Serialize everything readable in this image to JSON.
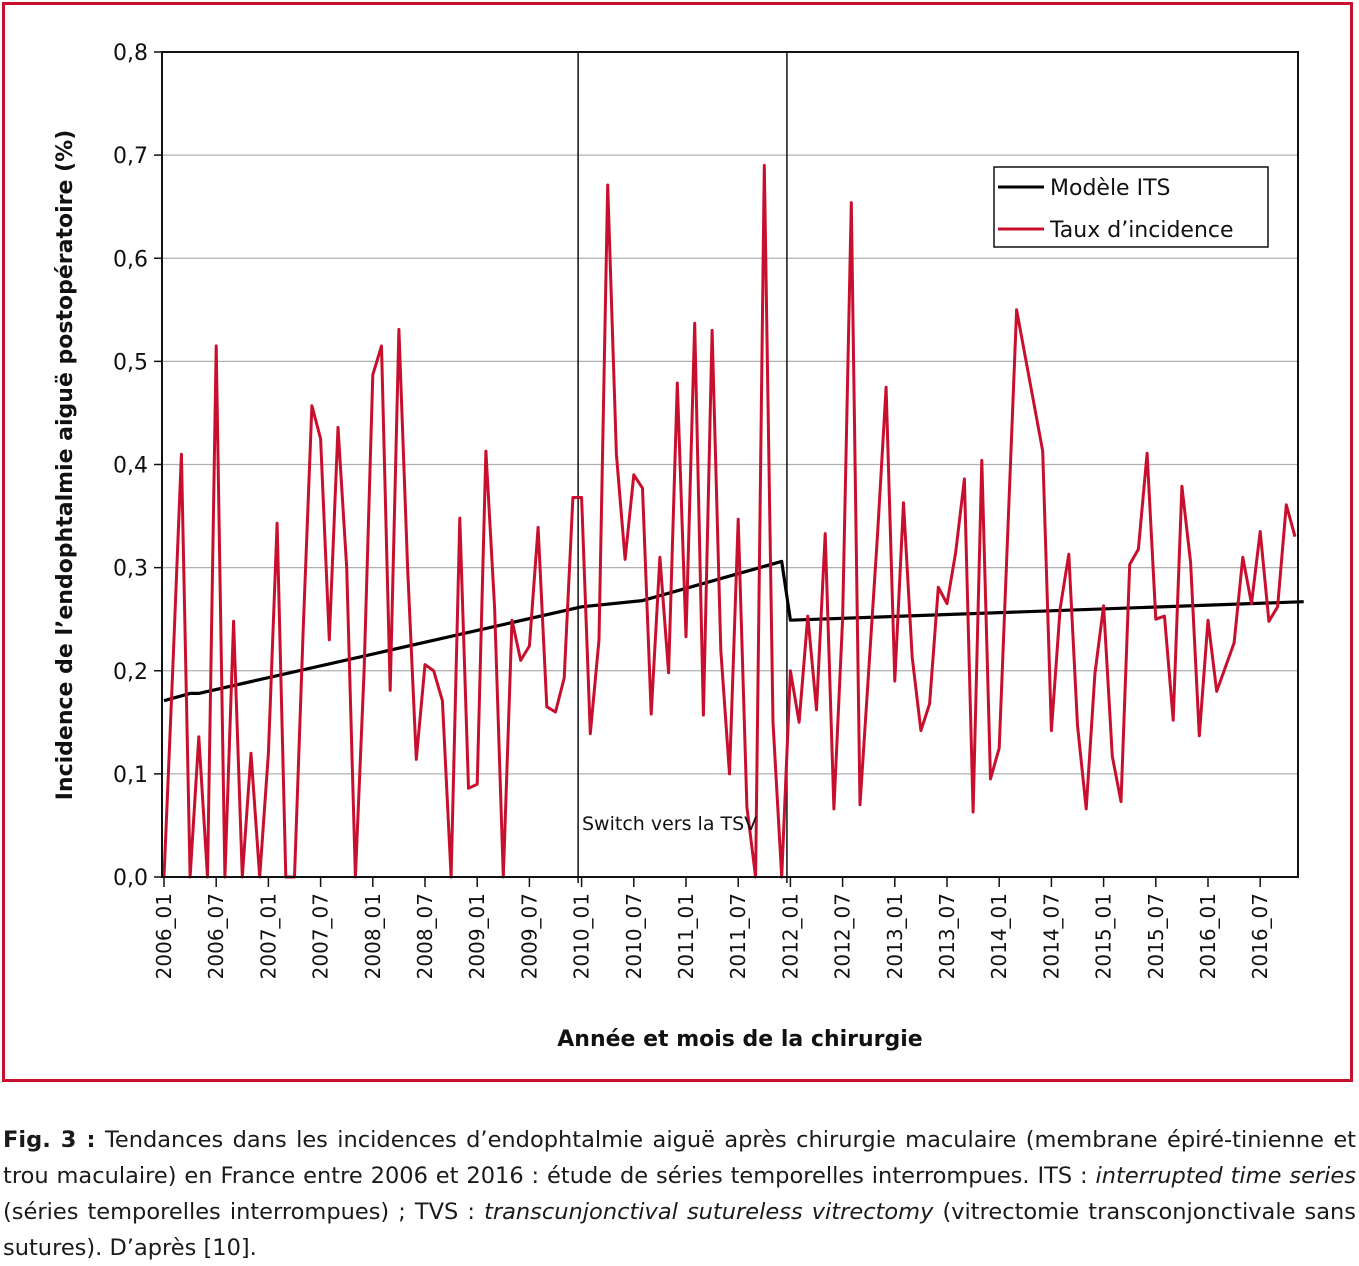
{
  "chart_data": {
    "type": "line",
    "xlabel": "Année et mois de la chirurgie",
    "ylabel": "Incidence de l’endophtalmie aiguë postopératoire (%)",
    "ylim": [
      0,
      0.8
    ],
    "y_ticks": [
      "0,0",
      "0,1",
      "0,2",
      "0,3",
      "0,4",
      "0,5",
      "0,6",
      "0,7",
      "0,8"
    ],
    "x_ticks": [
      "2006_01",
      "2006_07",
      "2007_01",
      "2007_07",
      "2008_01",
      "2008_07",
      "2009_01",
      "2009_07",
      "2010_01",
      "2010_07",
      "2011_01",
      "2011_07",
      "2012_01",
      "2012_07",
      "2013_01",
      "2013_07",
      "2014_01",
      "2014_07",
      "2015_01",
      "2015_07",
      "2016_01",
      "2016_07"
    ],
    "x_range": [
      "2006_01",
      "2016_12"
    ],
    "grid": "horizontal",
    "legend_position": "top-right",
    "annotation": "Switch vers la TSV",
    "switch_lines": [
      "2009_12",
      "2011_12"
    ],
    "series": [
      {
        "name": "Modèle ITS",
        "color": "#000000",
        "points": [
          [
            0,
            0.171
          ],
          [
            3,
            0.178
          ],
          [
            4,
            0.178
          ],
          [
            48,
            0.262
          ],
          [
            55,
            0.268
          ],
          [
            71,
            0.306
          ],
          [
            72,
            0.249
          ],
          [
            131,
            0.267
          ]
        ]
      },
      {
        "name": "Taux d’incidence",
        "color": "#c8102e",
        "points": [
          [
            0,
            0.0
          ],
          [
            1,
            0.2
          ],
          [
            2,
            0.41
          ],
          [
            3,
            0.0
          ],
          [
            4,
            0.136
          ],
          [
            5,
            0.0
          ],
          [
            6,
            0.515
          ],
          [
            7,
            0.0
          ],
          [
            8,
            0.248
          ],
          [
            9,
            0.0
          ],
          [
            10,
            0.12
          ],
          [
            11,
            0.0
          ],
          [
            12,
            0.12
          ],
          [
            13,
            0.343
          ],
          [
            14,
            0.0
          ],
          [
            15,
            0.0
          ],
          [
            16,
            0.24
          ],
          [
            17,
            0.457
          ],
          [
            18,
            0.425
          ],
          [
            19,
            0.23
          ],
          [
            20,
            0.436
          ],
          [
            21,
            0.3
          ],
          [
            22,
            0.0
          ],
          [
            23,
            0.2
          ],
          [
            24,
            0.487
          ],
          [
            25,
            0.515
          ],
          [
            26,
            0.181
          ],
          [
            27,
            0.531
          ],
          [
            28,
            0.3
          ],
          [
            29,
            0.114
          ],
          [
            30,
            0.206
          ],
          [
            31,
            0.2
          ],
          [
            32,
            0.171
          ],
          [
            33,
            0.0
          ],
          [
            34,
            0.348
          ],
          [
            35,
            0.086
          ],
          [
            36,
            0.09
          ],
          [
            37,
            0.413
          ],
          [
            38,
            0.261
          ],
          [
            39,
            0.0
          ],
          [
            40,
            0.249
          ],
          [
            41,
            0.21
          ],
          [
            42,
            0.224
          ],
          [
            43,
            0.339
          ],
          [
            44,
            0.165
          ],
          [
            45,
            0.16
          ],
          [
            46,
            0.193
          ],
          [
            47,
            0.368
          ],
          [
            48,
            0.368
          ],
          [
            49,
            0.139
          ],
          [
            50,
            0.23
          ],
          [
            51,
            0.671
          ],
          [
            52,
            0.41
          ],
          [
            53,
            0.308
          ],
          [
            54,
            0.39
          ],
          [
            55,
            0.377
          ],
          [
            56,
            0.158
          ],
          [
            57,
            0.31
          ],
          [
            58,
            0.198
          ],
          [
            59,
            0.479
          ],
          [
            60,
            0.233
          ],
          [
            61,
            0.537
          ],
          [
            62,
            0.157
          ],
          [
            63,
            0.53
          ],
          [
            64,
            0.22
          ],
          [
            65,
            0.1
          ],
          [
            66,
            0.347
          ],
          [
            67,
            0.068
          ],
          [
            68,
            0.0
          ],
          [
            69,
            0.69
          ],
          [
            70,
            0.15
          ],
          [
            71,
            0.0
          ],
          [
            72,
            0.2
          ],
          [
            73,
            0.15
          ],
          [
            74,
            0.253
          ],
          [
            75,
            0.162
          ],
          [
            76,
            0.333
          ],
          [
            77,
            0.066
          ],
          [
            78,
            0.25
          ],
          [
            79,
            0.654
          ],
          [
            80,
            0.07
          ],
          [
            81,
            0.2
          ],
          [
            82,
            0.33
          ],
          [
            83,
            0.475
          ],
          [
            84,
            0.19
          ],
          [
            85,
            0.363
          ],
          [
            86,
            0.213
          ],
          [
            87,
            0.142
          ],
          [
            88,
            0.168
          ],
          [
            89,
            0.281
          ],
          [
            90,
            0.265
          ],
          [
            91,
            0.315
          ],
          [
            92,
            0.386
          ],
          [
            93,
            0.063
          ],
          [
            94,
            0.404
          ],
          [
            95,
            0.095
          ],
          [
            96,
            0.125
          ],
          [
            98,
            0.55
          ],
          [
            101,
            0.413
          ],
          [
            102,
            0.142
          ],
          [
            103,
            0.26
          ],
          [
            104,
            0.313
          ],
          [
            105,
            0.147
          ],
          [
            106,
            0.066
          ],
          [
            107,
            0.197
          ],
          [
            108,
            0.263
          ],
          [
            109,
            0.117
          ],
          [
            110,
            0.073
          ],
          [
            111,
            0.303
          ],
          [
            112,
            0.318
          ],
          [
            113,
            0.411
          ],
          [
            114,
            0.25
          ],
          [
            115,
            0.253
          ],
          [
            116,
            0.152
          ],
          [
            117,
            0.379
          ],
          [
            118,
            0.305
          ],
          [
            119,
            0.137
          ],
          [
            120,
            0.249
          ],
          [
            121,
            0.18
          ],
          [
            123,
            0.227
          ],
          [
            124,
            0.31
          ],
          [
            125,
            0.265
          ],
          [
            126,
            0.335
          ],
          [
            127,
            0.248
          ],
          [
            128,
            0.262
          ],
          [
            129,
            0.361
          ],
          [
            130,
            0.33
          ]
        ]
      }
    ]
  },
  "caption": {
    "fig_label": "Fig. 3 :",
    "line1_text": " Tendances dans les incidences d’endophtalmie aiguë après chirurgie maculaire (membrane épiré-tinienne et trou maculaire) en France entre 2006 et 2016 : étude de séries temporelles interrompues. ITS : ",
    "its_term": "interrupted time series",
    "its_fr": " (séries temporelles interrompues) ; TVS : ",
    "tvs_term": "transcunjonctival sutureless vitrectomy",
    "tvs_fr": " (vitrectomie transconjonctivale sans sutures). D’après [10]."
  }
}
